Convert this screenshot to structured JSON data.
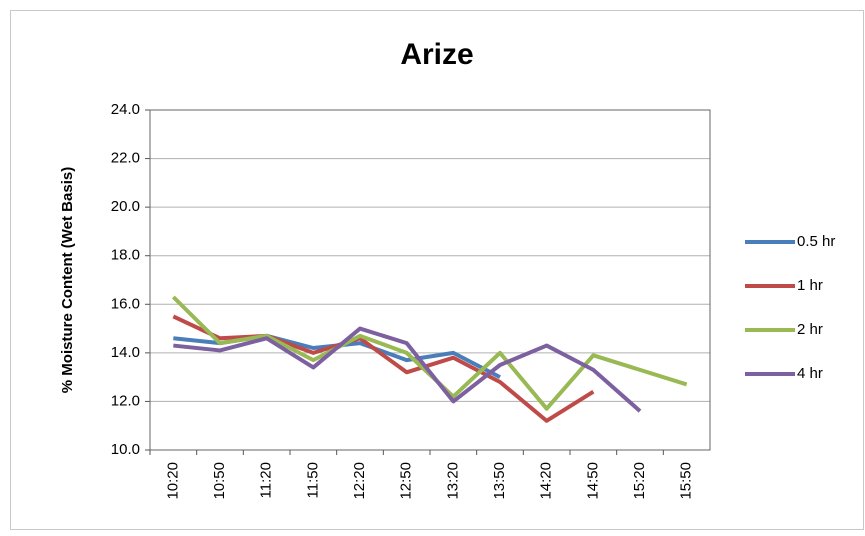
{
  "chart_data": {
    "type": "line",
    "title": "Arize",
    "y_label": "% Moisture Content (Wet Basis)",
    "categories": [
      "10:20",
      "10:50",
      "11:20",
      "11:50",
      "12:20",
      "12:50",
      "13:20",
      "13:50",
      "14:20",
      "14:50",
      "15:20",
      "15:50"
    ],
    "series": [
      {
        "name": "0.5 hr",
        "color": "#4a7ebb",
        "values": [
          14.6,
          14.4,
          14.7,
          14.2,
          14.4,
          13.7,
          14.0,
          13.0,
          null,
          null,
          null,
          null
        ]
      },
      {
        "name": "1 hr",
        "color": "#be4b48",
        "values": [
          15.5,
          14.6,
          14.7,
          14.0,
          14.6,
          13.2,
          13.8,
          12.8,
          11.2,
          12.4,
          null,
          null
        ]
      },
      {
        "name": "2 hr",
        "color": "#98b954",
        "values": [
          16.3,
          14.4,
          14.7,
          13.7,
          14.7,
          14.0,
          12.2,
          14.0,
          11.7,
          13.9,
          13.3,
          12.7
        ]
      },
      {
        "name": "4 hr",
        "color": "#7d60a0",
        "values": [
          14.3,
          14.1,
          14.6,
          13.4,
          15.0,
          14.4,
          12.0,
          13.5,
          14.3,
          13.3,
          11.6,
          null
        ]
      }
    ],
    "ylim": [
      10,
      24
    ],
    "yticks": [
      {
        "value": 10,
        "label": "10.0"
      },
      {
        "value": 12,
        "label": "12.0"
      },
      {
        "value": 14,
        "label": "14.0"
      },
      {
        "value": 16,
        "label": "16.0"
      },
      {
        "value": 18,
        "label": "18.0"
      },
      {
        "value": 20,
        "label": "20.0"
      },
      {
        "value": 22,
        "label": "22.0"
      },
      {
        "value": 24,
        "label": "24.0"
      }
    ],
    "grid": true,
    "legend": "right"
  }
}
